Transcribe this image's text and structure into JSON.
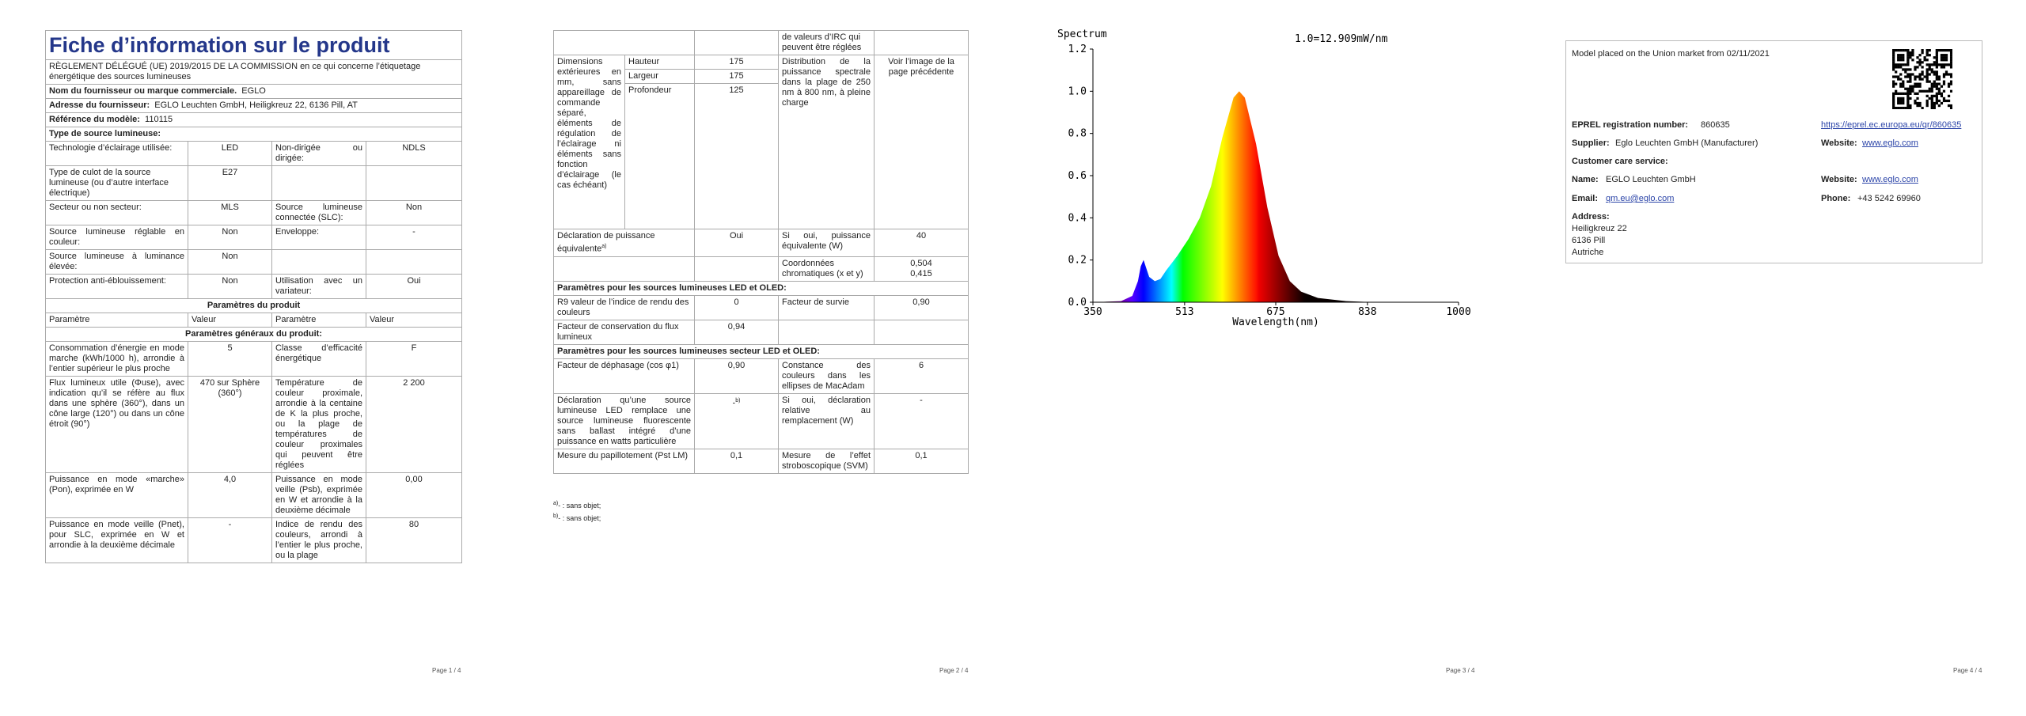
{
  "page1": {
    "title": "Fiche d’information sur le produit",
    "regulation": "RÈGLEMENT DÉLÉGUÉ (UE) 2019/2015 DE LA COMMISSION en ce qui concerne l’étiquetage énergétique des sources lumineuses",
    "supplier_name": {
      "label": "Nom du fournisseur ou marque commerciale.",
      "value": "EGLO"
    },
    "supplier_address": {
      "label": "Adresse du fournisseur:",
      "value": "EGLO Leuchten GmbH, Heiligkreuz 22, 6136 Pill, AT"
    },
    "model": {
      "label": "Référence du modèle:",
      "value": "110115"
    },
    "source_type_heading": "Type de source lumineuse:",
    "source_rows": [
      [
        "Technologie d’éclairage utilisée:",
        "LED",
        "Non-dirigée ou dirigée:",
        "NDLS"
      ],
      [
        "Type de culot de la source lumineuse (ou d’autre interface électrique)",
        "E27"
      ],
      [
        "Secteur ou non secteur:",
        "MLS",
        "Source lumineuse connectée (SLC):",
        "Non"
      ],
      [
        "Source lumineuse réglable en couleur:",
        "Non",
        "Enveloppe:",
        "-"
      ],
      [
        "Source lumineuse à luminance élevée:",
        "Non"
      ],
      [
        "Protection anti-éblouissement:",
        "Non",
        "Utilisation avec un variateur:",
        "Oui"
      ]
    ],
    "product_params_heading": "Paramètres du produit",
    "column_headers": [
      "Paramètre",
      "Valeur",
      "Paramètre",
      "Valeur"
    ],
    "general_params_heading": "Paramètres généraux du produit:",
    "general_rows": [
      [
        "Consommation d’énergie en mode marche (kWh/1000 h), arrondie à l’entier supérieur le plus proche",
        "5",
        "Classe d’efficacité énergétique",
        "F"
      ],
      [
        "Flux lumineux utile (Φuse), avec indication qu’il se réfère au flux dans une sphère (360°), dans un cône large (120°) ou dans un cône étroit (90°)",
        "470 sur Sphère (360°)",
        "Température de couleur proximale, arrondie à la centaine de K la plus proche, ou la plage de températures de couleur proximales qui peuvent être réglées",
        "2 200"
      ],
      [
        "Puissance en mode «marche» (Pon), exprimée en W",
        "4,0",
        "Puissance en mode veille (Psb), exprimée en W et arrondie à la deuxième décimale",
        "0,00"
      ],
      [
        "Puissance en mode veille (Pnet), pour SLC, exprimée en W et arrondie à la deuxième décimale",
        "-",
        "Indice de rendu des couleurs, arrondi à l’entier le plus proche, ou la plage",
        "80"
      ]
    ],
    "page_number": "Page 1 / 4"
  },
  "page2": {
    "continued_cell": "de valeurs d’IRC qui peuvent être réglées",
    "dimensions": {
      "label": "Dimensions extérieures en mm, sans appareillage de commande séparé, éléments de régulation de l’éclairage ni éléments sans fonction d’éclairage (le cas échéant)",
      "height": {
        "label": "Hauteur",
        "value": "175"
      },
      "width": {
        "label": "Largeur",
        "value": "175"
      },
      "depth": {
        "label": "Profondeur",
        "value": "125"
      },
      "spectral_label": "Distribution de la puissance spectrale dans la plage de 250 nm à 800 nm, à pleine charge",
      "spectral_value": "Voir l’image de la page précédente"
    },
    "equivalent_power": {
      "label": "Déclaration de puissance équivalente",
      "note": "a)",
      "value": "Oui",
      "label2": "Si oui, puissance équivalente (W)",
      "value2": "40"
    },
    "chromaticity": {
      "label": "Coordonnées chromatiques (x et y)",
      "x": "0,504",
      "y": "0,415"
    },
    "led_heading": "Paramètres pour les sources lumineuses LED et OLED:",
    "led_rows": [
      [
        "R9 valeur de l’indice de rendu des couleurs",
        "0",
        "Facteur de survie",
        "0,90"
      ],
      [
        "Facteur de conservation du flux lumineux",
        "0,94"
      ]
    ],
    "mains_heading": "Paramètres pour les sources lumineuses secteur LED et OLED:",
    "phase_factor": [
      "Facteur de déphasage (cos φ1)",
      "0,90",
      "Constance des couleurs dans les ellipses de MacAdam",
      "6"
    ],
    "fluorescent": {
      "label": "Déclaration qu’une source lumineuse LED remplace une source lumineuse fluorescente sans ballast intégré d’une puissance en watts particulière",
      "value": "-",
      "note": "b)",
      "label2": "Si oui, déclaration relative au remplacement (W)",
      "value2": "-"
    },
    "flicker": [
      "Mesure du papillotement (Pst LM)",
      "0,1",
      "Mesure de l’effet stroboscopique (SVM)",
      "0,1"
    ],
    "notes": [
      {
        "mark": "a)",
        "text": "- : sans objet;"
      },
      {
        "mark": "b)",
        "text": "- : sans objet;"
      }
    ],
    "page_number": "Page 2 / 4"
  },
  "chart_data": {
    "type": "area",
    "title": "Spectrum",
    "annotation": "1.0=12.909mW/nm",
    "x_label": "Wavelength(nm)",
    "x": [
      350,
      400,
      420,
      430,
      435,
      440,
      445,
      450,
      460,
      470,
      480,
      500,
      520,
      540,
      560,
      580,
      600,
      610,
      620,
      640,
      660,
      680,
      700,
      720,
      750,
      800,
      850,
      1000
    ],
    "values": [
      0,
      0.005,
      0.03,
      0.1,
      0.17,
      0.2,
      0.16,
      0.12,
      0.1,
      0.11,
      0.15,
      0.22,
      0.3,
      0.4,
      0.55,
      0.78,
      0.97,
      1.0,
      0.97,
      0.75,
      0.45,
      0.22,
      0.1,
      0.05,
      0.02,
      0.005,
      0,
      0
    ],
    "xlim": [
      350,
      1000
    ],
    "xticks": [
      350,
      513,
      675,
      838,
      1000
    ],
    "ylim": [
      0,
      1.2
    ],
    "yticks": [
      {
        "value": 0,
        "label": "0.0"
      },
      0.2,
      0.4,
      0.6,
      0.8,
      {
        "value": 1,
        "label": "1.0"
      },
      1.2
    ],
    "page_number": "Page 3 / 4"
  },
  "page4": {
    "market": "Model placed on the Union market from 02/11/2021",
    "eprel": {
      "label": "EPREL registration number:",
      "value": "860635",
      "link": "https://eprel.ec.europa.eu/qr/860635"
    },
    "supplier": {
      "label": "Supplier:",
      "value": "Eglo Leuchten GmbH (Manufacturer)",
      "website_label": "Website:",
      "website": "www.eglo.com"
    },
    "customer_care": "Customer care service:",
    "name": {
      "label": "Name:",
      "value": "EGLO Leuchten GmbH",
      "website_label": "Website:",
      "website": "www.eglo.com"
    },
    "email": {
      "label": "Email:",
      "value": "qm.eu@eglo.com",
      "phone_label": "Phone:",
      "phone": "+43 5242 69960"
    },
    "address": {
      "label": "Address:",
      "lines": [
        "Heiligkreuz 22",
        "6136 Pill",
        "Autriche"
      ]
    },
    "page_number": "Page 4 / 4"
  }
}
